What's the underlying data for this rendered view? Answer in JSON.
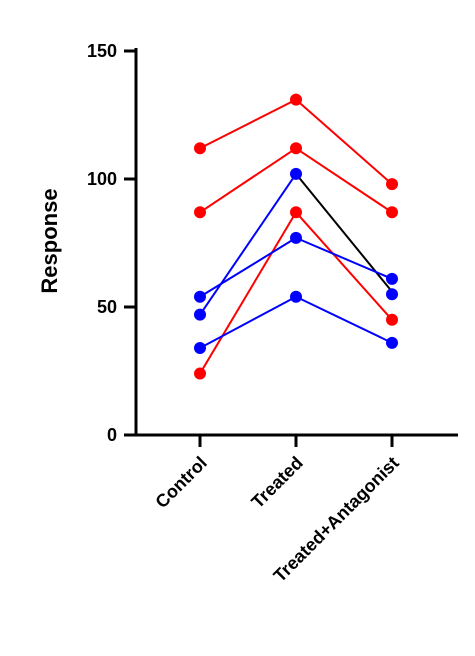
{
  "chart_data": {
    "type": "line",
    "title": "",
    "xlabel": "",
    "ylabel": "Response",
    "categories": [
      "Control",
      "Treated",
      "Treated+Antagonist"
    ],
    "ylim": [
      0,
      150
    ],
    "yticks": [
      0,
      50,
      100,
      150
    ],
    "grid": false,
    "series": [
      {
        "color": "#ff0000",
        "values": [
          112,
          131,
          98
        ]
      },
      {
        "color": "#ff0000",
        "values": [
          87,
          112,
          87
        ]
      },
      {
        "color": "#ff0000",
        "values": [
          24,
          87,
          45
        ],
        "line_colors": [
          "#ff0000",
          "#ff0000"
        ]
      },
      {
        "color": "#0000ff",
        "values": [
          47,
          102,
          56
        ],
        "line_colors": [
          "#0000ff",
          "#000000"
        ],
        "marker_mask": [
          true,
          true,
          false
        ]
      },
      {
        "color": "#0000ff",
        "values": [
          54,
          77,
          61
        ]
      },
      {
        "color": "#0000ff",
        "values": [
          34,
          54,
          36
        ]
      },
      {
        "color": "#0000ff",
        "values": [
          null,
          null,
          55
        ],
        "marker_mask": [
          false,
          false,
          true
        ]
      }
    ]
  }
}
